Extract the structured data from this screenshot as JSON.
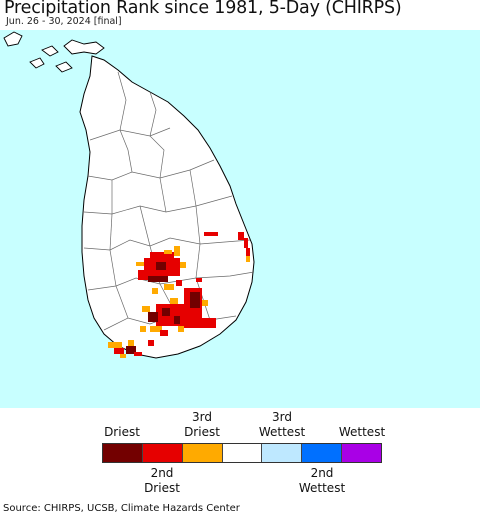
{
  "title": "Precipitation Rank since 1981, 5-Day (CHIRPS)",
  "subtitle": "Jun. 26 - 30, 2024 [final]",
  "legend": {
    "top_labels": [
      "Driest",
      "3rd\nDriest",
      "3rd\nWettest",
      "Wettest"
    ],
    "bottom_labels": [
      "2nd\nDriest",
      "2nd\nWettest"
    ],
    "colors": [
      "#730000",
      "#e60000",
      "#ffaa00",
      "#ffffff",
      "#bee8ff",
      "#0070ff",
      "#a900e6"
    ]
  },
  "source": "Source: CHIRPS, UCSB, Climate Hazards Center",
  "map": {
    "ocean_color": "#c8ffff",
    "land_color": "#ffffff",
    "boundary_color": "#555555"
  }
}
